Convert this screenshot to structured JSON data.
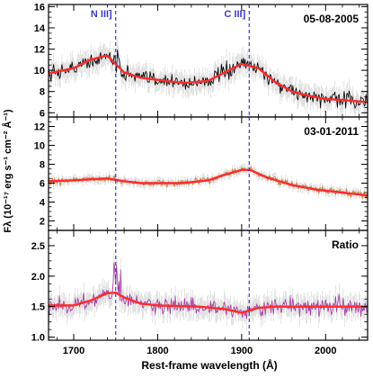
{
  "chart_data": {
    "type": "line",
    "xlabel": "Rest-frame wavelength (Å)",
    "ylabel": "Fλ (10⁻¹⁷ erg s⁻¹ cm⁻² Å⁻¹)",
    "xlim": [
      1670,
      2050
    ],
    "xticks": [
      1700,
      1800,
      1900,
      2000
    ],
    "lines": [
      {
        "label": "N III]",
        "x": 1750
      },
      {
        "label": "C III]",
        "x": 1909
      }
    ],
    "colors": {
      "line_marker": "#3a3acb",
      "fit": "#ff2a2a",
      "grid": "none"
    },
    "panels": [
      {
        "label": "05-08-2005",
        "ylim": [
          5.6,
          16.2
        ],
        "yticks": [
          6,
          8,
          10,
          12,
          14,
          16
        ],
        "data_color": "#000000",
        "noise": 0.75,
        "fit": {
          "x": [
            1670,
            1700,
            1720,
            1740,
            1760,
            1780,
            1800,
            1830,
            1860,
            1880,
            1900,
            1920,
            1940,
            1960,
            1980,
            2000,
            2020,
            2050
          ],
          "y": [
            9.7,
            10.2,
            11.0,
            11.4,
            9.8,
            9.3,
            9.1,
            8.8,
            9.0,
            9.8,
            10.6,
            10.2,
            8.9,
            8.0,
            7.6,
            7.3,
            7.2,
            7.0
          ]
        }
      },
      {
        "label": "03-01-2011",
        "ylim": [
          1.0,
          13.0
        ],
        "yticks": [
          2,
          4,
          6,
          8,
          10,
          12
        ],
        "data_color": "#c07a2e",
        "noise": 0.35,
        "fit": {
          "x": [
            1670,
            1700,
            1720,
            1740,
            1760,
            1780,
            1800,
            1830,
            1860,
            1880,
            1900,
            1910,
            1930,
            1960,
            1990,
            2020,
            2050
          ],
          "y": [
            6.2,
            6.3,
            6.4,
            6.5,
            6.2,
            6.0,
            6.0,
            6.0,
            6.3,
            6.9,
            7.4,
            7.4,
            6.6,
            5.8,
            5.3,
            5.0,
            4.7
          ]
        }
      },
      {
        "label": "Ratio",
        "ylim": [
          0.95,
          2.75
        ],
        "yticks": [
          1.0,
          1.5,
          2.0,
          2.5
        ],
        "data_color": "#a23aa3",
        "noise": 0.13,
        "fit": {
          "x": [
            1670,
            1700,
            1720,
            1740,
            1750,
            1760,
            1780,
            1800,
            1850,
            1880,
            1900,
            1920,
            1940,
            1980,
            2050
          ],
          "y": [
            1.52,
            1.52,
            1.6,
            1.72,
            1.73,
            1.65,
            1.55,
            1.52,
            1.5,
            1.46,
            1.4,
            1.48,
            1.5,
            1.5,
            1.5
          ]
        }
      }
    ]
  }
}
